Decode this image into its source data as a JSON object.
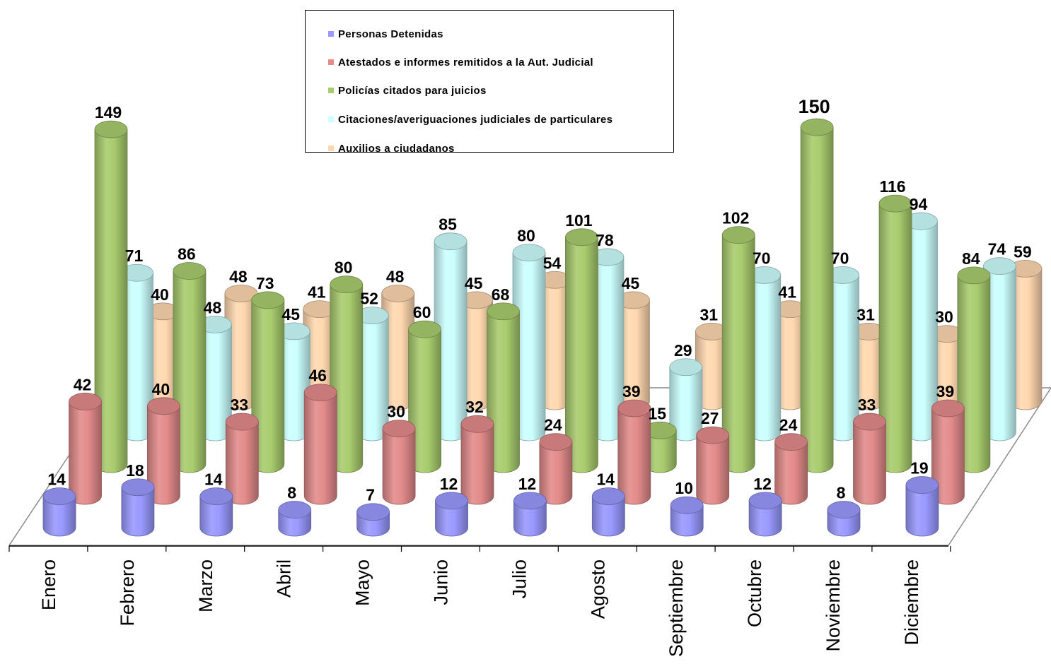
{
  "chart_data": {
    "type": "bar",
    "categories": [
      "Enero",
      "Febrero",
      "Marzo",
      "Abril",
      "Mayo",
      "Junio",
      "Julio",
      "Agosto",
      "Septiembre",
      "Octubre",
      "Noviembre",
      "Diciembre"
    ],
    "series": [
      {
        "name": "Personas Detenidas",
        "values": [
          14,
          18,
          14,
          8,
          7,
          12,
          12,
          14,
          10,
          12,
          8,
          19
        ],
        "color": "#9999ff"
      },
      {
        "name": "Atestados e informes remitidos a la Aut. Judicial",
        "values": [
          42,
          40,
          33,
          46,
          30,
          32,
          24,
          39,
          27,
          24,
          33,
          39
        ],
        "color": "#e38b8b"
      },
      {
        "name": "Policías citados para juicios",
        "values": [
          149,
          86,
          73,
          80,
          60,
          68,
          101,
          15,
          102,
          150,
          116,
          84
        ],
        "color": "#a9cc6e"
      },
      {
        "name": "Citaciones/averiguaciones judiciales de particulares",
        "values": [
          71,
          48,
          45,
          52,
          85,
          80,
          78,
          29,
          70,
          70,
          94,
          74
        ],
        "color": "#ccffff"
      },
      {
        "name": "Auxilios a ciudadanos",
        "values": [
          40,
          48,
          41,
          48,
          45,
          54,
          45,
          31,
          41,
          31,
          30,
          59
        ],
        "color": "#ffd8b0"
      }
    ],
    "style": "3d-cylinder",
    "legend_position": "top-center",
    "grid": false
  }
}
